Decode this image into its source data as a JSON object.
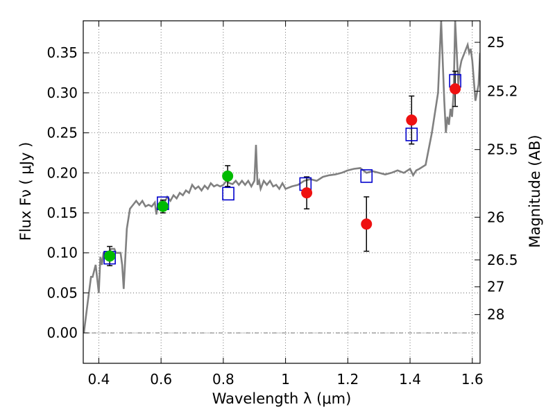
{
  "chart_data": {
    "type": "scatter",
    "xlabel": "Wavelength  λ (μm)",
    "ylabel": "Flux  Fν  ( μJy )",
    "y2label": "Magnitude (AB)",
    "xlim": [
      0.35,
      1.625
    ],
    "ylim": [
      -0.038,
      0.39
    ],
    "grid": true,
    "x_ticks": [
      {
        "v": 0.4,
        "label": "0.4"
      },
      {
        "v": 0.6,
        "label": "0.6"
      },
      {
        "v": 0.8,
        "label": "0.8"
      },
      {
        "v": 1.0,
        "label": "1"
      },
      {
        "v": 1.2,
        "label": "1.2"
      },
      {
        "v": 1.4,
        "label": "1.4"
      },
      {
        "v": 1.6,
        "label": "1.6"
      }
    ],
    "y_ticks": [
      {
        "v": 0.0,
        "label": "0.00"
      },
      {
        "v": 0.05,
        "label": "0.05"
      },
      {
        "v": 0.1,
        "label": "0.10"
      },
      {
        "v": 0.15,
        "label": "0.15"
      },
      {
        "v": 0.2,
        "label": "0.20"
      },
      {
        "v": 0.25,
        "label": "0.25"
      },
      {
        "v": 0.3,
        "label": "0.30"
      },
      {
        "v": 0.35,
        "label": "0.35"
      }
    ],
    "y2_ticks": [
      {
        "mag": 25,
        "label": "25"
      },
      {
        "mag": 25.2,
        "label": "25.2"
      },
      {
        "mag": 25.5,
        "label": "25.5"
      },
      {
        "mag": 26,
        "label": "26"
      },
      {
        "mag": 26.5,
        "label": "26.5"
      },
      {
        "mag": 27,
        "label": "27"
      },
      {
        "mag": 28,
        "label": "28"
      }
    ],
    "colors": {
      "model": "#808080",
      "model_points": "#0000cc",
      "green_points": "#00bb00",
      "red_points": "#ee1111",
      "errorbar": "#000000"
    },
    "model_sed": {
      "x": [
        0.352,
        0.365,
        0.375,
        0.38,
        0.39,
        0.4,
        0.405,
        0.41,
        0.415,
        0.42,
        0.43,
        0.44,
        0.45,
        0.455,
        0.46,
        0.465,
        0.47,
        0.475,
        0.48,
        0.49,
        0.5,
        0.51,
        0.52,
        0.53,
        0.54,
        0.55,
        0.56,
        0.57,
        0.58,
        0.585,
        0.59,
        0.6,
        0.61,
        0.62,
        0.63,
        0.64,
        0.65,
        0.66,
        0.67,
        0.68,
        0.69,
        0.7,
        0.71,
        0.72,
        0.73,
        0.74,
        0.75,
        0.76,
        0.77,
        0.78,
        0.79,
        0.8,
        0.81,
        0.82,
        0.83,
        0.84,
        0.85,
        0.86,
        0.87,
        0.88,
        0.89,
        0.9,
        0.905,
        0.91,
        0.915,
        0.92,
        0.93,
        0.94,
        0.95,
        0.96,
        0.97,
        0.98,
        0.99,
        1.0,
        1.02,
        1.04,
        1.06,
        1.08,
        1.1,
        1.12,
        1.14,
        1.16,
        1.18,
        1.2,
        1.22,
        1.24,
        1.26,
        1.28,
        1.3,
        1.32,
        1.34,
        1.36,
        1.38,
        1.4,
        1.41,
        1.42,
        1.43,
        1.45,
        1.47,
        1.49,
        1.5,
        1.51,
        1.515,
        1.52,
        1.525,
        1.53,
        1.535,
        1.54,
        1.545,
        1.55,
        1.555,
        1.56,
        1.565,
        1.57,
        1.575,
        1.58,
        1.585,
        1.59,
        1.595,
        1.6,
        1.61,
        1.615,
        1.62,
        1.625
      ],
      "y": [
        0.0,
        0.04,
        0.07,
        0.07,
        0.085,
        0.05,
        0.095,
        0.085,
        0.1,
        0.1,
        0.1,
        0.105,
        0.105,
        0.1,
        0.1,
        0.1,
        0.1,
        0.085,
        0.055,
        0.13,
        0.155,
        0.16,
        0.165,
        0.16,
        0.165,
        0.158,
        0.16,
        0.158,
        0.163,
        0.148,
        0.16,
        0.165,
        0.162,
        0.17,
        0.165,
        0.172,
        0.168,
        0.175,
        0.172,
        0.178,
        0.175,
        0.185,
        0.18,
        0.183,
        0.178,
        0.184,
        0.18,
        0.187,
        0.183,
        0.185,
        0.183,
        0.185,
        0.19,
        0.187,
        0.186,
        0.19,
        0.185,
        0.19,
        0.185,
        0.19,
        0.183,
        0.19,
        0.235,
        0.185,
        0.19,
        0.18,
        0.19,
        0.185,
        0.19,
        0.183,
        0.185,
        0.18,
        0.187,
        0.18,
        0.183,
        0.185,
        0.19,
        0.192,
        0.19,
        0.195,
        0.197,
        0.198,
        0.2,
        0.203,
        0.205,
        0.206,
        0.2,
        0.202,
        0.2,
        0.198,
        0.2,
        0.203,
        0.2,
        0.205,
        0.197,
        0.203,
        0.205,
        0.21,
        0.25,
        0.3,
        0.39,
        0.29,
        0.25,
        0.27,
        0.26,
        0.28,
        0.27,
        0.3,
        0.39,
        0.35,
        0.31,
        0.33,
        0.34,
        0.345,
        0.35,
        0.355,
        0.36,
        0.35,
        0.355,
        0.34,
        0.29,
        0.3,
        0.31,
        0.35
      ]
    },
    "series": [
      {
        "marker": "open-square",
        "points": [
          {
            "x": 0.435,
            "y": 0.094
          },
          {
            "x": 0.606,
            "y": 0.162
          },
          {
            "x": 0.816,
            "y": 0.174
          },
          {
            "x": 1.064,
            "y": 0.186
          },
          {
            "x": 1.26,
            "y": 0.196
          },
          {
            "x": 1.405,
            "y": 0.248
          },
          {
            "x": 1.545,
            "y": 0.315
          }
        ]
      },
      {
        "marker": "filled-circle",
        "color_key": "green_points",
        "points": [
          {
            "x": 0.435,
            "y": 0.096,
            "err": 0.012
          },
          {
            "x": 0.606,
            "y": 0.158,
            "err": 0.008
          },
          {
            "x": 0.814,
            "y": 0.196,
            "err": 0.013
          }
        ]
      },
      {
        "marker": "filled-circle",
        "color_key": "red_points",
        "points": [
          {
            "x": 1.068,
            "y": 0.175,
            "err": 0.02
          },
          {
            "x": 1.26,
            "y": 0.136,
            "err": 0.034
          },
          {
            "x": 1.405,
            "y": 0.266,
            "err": 0.03
          },
          {
            "x": 1.545,
            "y": 0.305,
            "err": 0.022
          }
        ]
      }
    ]
  }
}
